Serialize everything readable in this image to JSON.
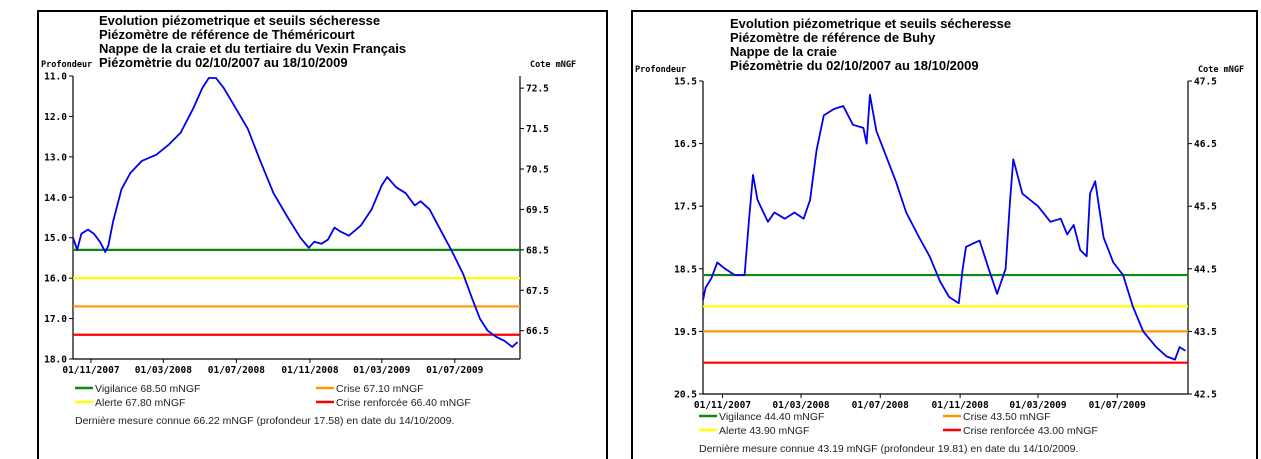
{
  "chart_data": [
    {
      "type": "line",
      "title_lines": [
        "Evolution piézometrique et seuils sécheresse",
        "Piézomètre de référence de Théméricourt",
        "Nappe de la craie et du tertiaire du Vexin Français",
        "Piézomètrie du 02/10/2007 au 18/10/2009"
      ],
      "ylabel_left": "Profondeur",
      "ylabel_right": "Cote mNGF",
      "x_domain": [
        "2007-10-02",
        "2009-10-18"
      ],
      "x_ticks": [
        {
          "date": "2007-11-01",
          "label": "01/11/2007"
        },
        {
          "date": "2008-03-01",
          "label": "01/03/2008"
        },
        {
          "date": "2008-07-01",
          "label": "01/07/2008"
        },
        {
          "date": "2008-11-01",
          "label": "01/11/2008"
        },
        {
          "date": "2009-03-01",
          "label": "01/03/2009"
        },
        {
          "date": "2009-07-01",
          "label": "01/07/2009"
        }
      ],
      "ylim_left": [
        18.0,
        11.0
      ],
      "y_ticks_left": [
        "11.0",
        "12.0",
        "13.0",
        "14.0",
        "15.0",
        "16.0",
        "17.0",
        "18.0"
      ],
      "ylim_right": [
        65.8,
        72.8
      ],
      "y_ticks_right": [
        "72.5",
        "71.5",
        "70.5",
        "69.5",
        "68.5",
        "67.5",
        "66.5"
      ],
      "y_ticks_right_values": [
        72.5,
        71.5,
        70.5,
        69.5,
        68.5,
        67.5,
        66.5
      ],
      "thresholds": [
        {
          "label": "Vigilance 68.50 mNGF",
          "value": 68.5,
          "color": "#0b8a0b"
        },
        {
          "label": "Crise 67.10 mNGF",
          "value": 67.1,
          "color": "#ff9900"
        },
        {
          "label": "Alerte 67.80 mNGF",
          "value": 67.8,
          "color": "#ffff00"
        },
        {
          "label": "Crise renforcée 66.40 mNGF",
          "value": 66.4,
          "color": "#ff0000"
        }
      ],
      "series": [
        {
          "color": "#0000ee",
          "points": [
            [
              "2007-10-02",
              15.0
            ],
            [
              "2007-10-09",
              15.3
            ],
            [
              "2007-10-16",
              14.9
            ],
            [
              "2007-10-27",
              14.8
            ],
            [
              "2007-11-06",
              14.9
            ],
            [
              "2007-11-16",
              15.1
            ],
            [
              "2007-11-25",
              15.35
            ],
            [
              "2007-11-30",
              15.2
            ],
            [
              "2007-12-08",
              14.6
            ],
            [
              "2007-12-22",
              13.8
            ],
            [
              "2008-01-06",
              13.4
            ],
            [
              "2008-01-25",
              13.1
            ],
            [
              "2008-02-18",
              12.95
            ],
            [
              "2008-03-10",
              12.7
            ],
            [
              "2008-03-30",
              12.4
            ],
            [
              "2008-04-20",
              11.8
            ],
            [
              "2008-05-05",
              11.3
            ],
            [
              "2008-05-16",
              11.05
            ],
            [
              "2008-05-28",
              11.05
            ],
            [
              "2008-06-10",
              11.3
            ],
            [
              "2008-06-30",
              11.8
            ],
            [
              "2008-07-20",
              12.3
            ],
            [
              "2008-08-10",
              13.1
            ],
            [
              "2008-09-01",
              13.9
            ],
            [
              "2008-09-25",
              14.5
            ],
            [
              "2008-10-16",
              15.0
            ],
            [
              "2008-10-30",
              15.25
            ],
            [
              "2008-11-08",
              15.1
            ],
            [
              "2008-11-20",
              15.15
            ],
            [
              "2008-12-01",
              15.05
            ],
            [
              "2008-12-12",
              14.75
            ],
            [
              "2008-12-22",
              14.85
            ],
            [
              "2009-01-05",
              14.95
            ],
            [
              "2009-01-25",
              14.7
            ],
            [
              "2009-02-12",
              14.3
            ],
            [
              "2009-03-01",
              13.7
            ],
            [
              "2009-03-10",
              13.5
            ],
            [
              "2009-03-25",
              13.75
            ],
            [
              "2009-04-10",
              13.9
            ],
            [
              "2009-04-25",
              14.2
            ],
            [
              "2009-05-05",
              14.1
            ],
            [
              "2009-05-20",
              14.3
            ],
            [
              "2009-06-05",
              14.75
            ],
            [
              "2009-06-25",
              15.3
            ],
            [
              "2009-07-15",
              15.9
            ],
            [
              "2009-07-30",
              16.5
            ],
            [
              "2009-08-12",
              17.0
            ],
            [
              "2009-08-25",
              17.3
            ],
            [
              "2009-09-08",
              17.45
            ],
            [
              "2009-09-22",
              17.55
            ],
            [
              "2009-10-05",
              17.7
            ],
            [
              "2009-10-14",
              17.58
            ]
          ]
        }
      ],
      "footer": "Dernière mesure connue 66.22 mNGF (profondeur  17.58) en date du 14/10/2009."
    },
    {
      "type": "line",
      "title_lines": [
        "Evolution piézometrique et seuils sécheresse",
        "Piézomètre de référence de Buhy",
        "Nappe de la craie",
        "Piézomètrie du 02/10/2007 au 18/10/2009"
      ],
      "ylabel_left": "Profondeur",
      "ylabel_right": "Cote mNGF",
      "x_domain": [
        "2007-10-02",
        "2009-10-18"
      ],
      "x_ticks": [
        {
          "date": "2007-11-01",
          "label": "01/11/2007"
        },
        {
          "date": "2008-03-01",
          "label": "01/03/2008"
        },
        {
          "date": "2008-07-01",
          "label": "01/07/2008"
        },
        {
          "date": "2008-11-01",
          "label": "01/11/2008"
        },
        {
          "date": "2009-03-01",
          "label": "01/03/2009"
        },
        {
          "date": "2009-07-01",
          "label": "01/07/2009"
        }
      ],
      "ylim_left": [
        20.5,
        15.5
      ],
      "y_ticks_left": [
        "15.5",
        "16.5",
        "17.5",
        "18.5",
        "19.5",
        "20.5"
      ],
      "ylim_right": [
        42.5,
        47.5
      ],
      "y_ticks_right": [
        "47.5",
        "46.5",
        "45.5",
        "44.5",
        "43.5",
        "42.5"
      ],
      "y_ticks_right_values": [
        47.5,
        46.5,
        45.5,
        44.5,
        43.5,
        42.5
      ],
      "thresholds": [
        {
          "label": "Vigilance 44.40 mNGF",
          "value": 44.4,
          "color": "#0b8a0b"
        },
        {
          "label": "Crise 43.50 mNGF",
          "value": 43.5,
          "color": "#ff9900"
        },
        {
          "label": "Alerte 43.90 mNGF",
          "value": 43.9,
          "color": "#ffff00"
        },
        {
          "label": "Crise renforcée 43.00 mNGF",
          "value": 43.0,
          "color": "#ff0000"
        }
      ],
      "series": [
        {
          "color": "#0000ee",
          "points": [
            [
              "2007-10-02",
              19.0
            ],
            [
              "2007-10-06",
              18.8
            ],
            [
              "2007-10-15",
              18.65
            ],
            [
              "2007-10-24",
              18.4
            ],
            [
              "2007-11-05",
              18.5
            ],
            [
              "2007-11-20",
              18.6
            ],
            [
              "2007-12-05",
              18.6
            ],
            [
              "2007-12-12",
              17.7
            ],
            [
              "2007-12-18",
              17.0
            ],
            [
              "2007-12-25",
              17.4
            ],
            [
              "2008-01-10",
              17.75
            ],
            [
              "2008-01-20",
              17.6
            ],
            [
              "2008-02-05",
              17.7
            ],
            [
              "2008-02-20",
              17.6
            ],
            [
              "2008-03-05",
              17.7
            ],
            [
              "2008-03-15",
              17.4
            ],
            [
              "2008-03-25",
              16.6
            ],
            [
              "2008-04-05",
              16.05
            ],
            [
              "2008-04-20",
              15.95
            ],
            [
              "2008-05-05",
              15.9
            ],
            [
              "2008-05-20",
              16.2
            ],
            [
              "2008-06-05",
              16.25
            ],
            [
              "2008-06-10",
              16.5
            ],
            [
              "2008-06-15",
              15.72
            ],
            [
              "2008-06-25",
              16.3
            ],
            [
              "2008-07-10",
              16.7
            ],
            [
              "2008-07-25",
              17.1
            ],
            [
              "2008-08-10",
              17.6
            ],
            [
              "2008-08-30",
              18.0
            ],
            [
              "2008-09-15",
              18.3
            ],
            [
              "2008-10-01",
              18.7
            ],
            [
              "2008-10-15",
              18.95
            ],
            [
              "2008-10-30",
              19.05
            ],
            [
              "2008-11-05",
              18.5
            ],
            [
              "2008-11-10",
              18.15
            ],
            [
              "2008-11-20",
              18.1
            ],
            [
              "2008-12-01",
              18.05
            ],
            [
              "2008-12-15",
              18.5
            ],
            [
              "2008-12-28",
              18.9
            ],
            [
              "2009-01-10",
              18.5
            ],
            [
              "2009-01-17",
              17.4
            ],
            [
              "2009-01-22",
              16.75
            ],
            [
              "2009-02-05",
              17.3
            ],
            [
              "2009-03-01",
              17.5
            ],
            [
              "2009-03-20",
              17.75
            ],
            [
              "2009-04-05",
              17.7
            ],
            [
              "2009-04-15",
              17.95
            ],
            [
              "2009-04-25",
              17.8
            ],
            [
              "2009-05-05",
              18.2
            ],
            [
              "2009-05-15",
              18.3
            ],
            [
              "2009-05-20",
              17.3
            ],
            [
              "2009-05-28",
              17.1
            ],
            [
              "2009-06-10",
              18.0
            ],
            [
              "2009-06-25",
              18.4
            ],
            [
              "2009-07-10",
              18.6
            ],
            [
              "2009-07-25",
              19.1
            ],
            [
              "2009-08-10",
              19.5
            ],
            [
              "2009-08-30",
              19.75
            ],
            [
              "2009-09-15",
              19.9
            ],
            [
              "2009-09-28",
              19.95
            ],
            [
              "2009-10-05",
              19.75
            ],
            [
              "2009-10-14",
              19.81
            ]
          ]
        }
      ],
      "footer": "Dernière mesure connue 43.19 mNGF (profondeur  19.81) en date du 14/10/2009."
    }
  ]
}
